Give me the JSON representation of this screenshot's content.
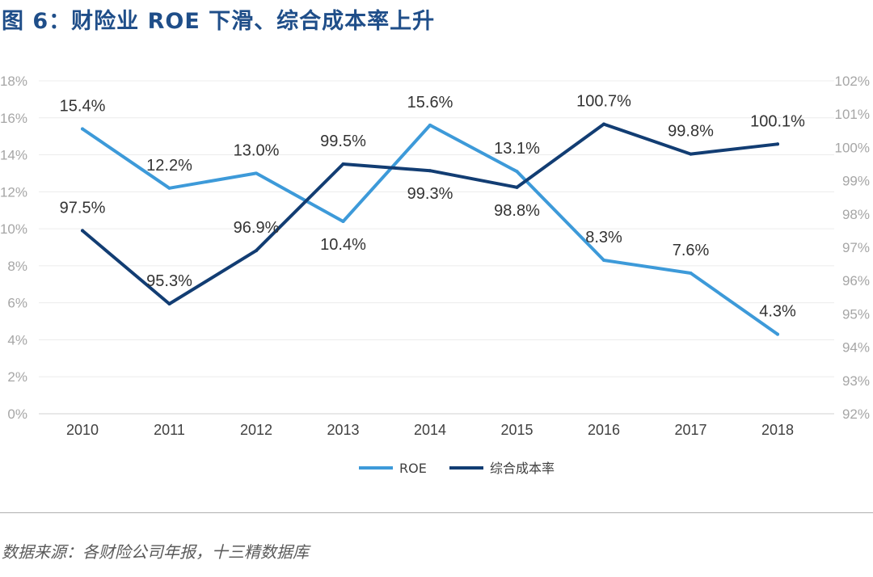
{
  "figure": {
    "title": "图 6：财险业 ROE 下滑、综合成本率上升",
    "source": "数据来源：各财险公司年报，十三精数据库"
  },
  "chart_data": {
    "type": "line",
    "title": "图 6：财险业 ROE 下滑、综合成本率上升",
    "categories": [
      "2010",
      "2011",
      "2012",
      "2013",
      "2014",
      "2015",
      "2016",
      "2017",
      "2018"
    ],
    "series": [
      {
        "name": "ROE",
        "axis": "left",
        "color": "#3d9ad9",
        "values": [
          15.4,
          12.2,
          13.0,
          10.4,
          15.6,
          13.1,
          8.3,
          7.6,
          4.3
        ],
        "labels": [
          "15.4%",
          "12.2%",
          "13.0%",
          "10.4%",
          "15.6%",
          "13.1%",
          "8.3%",
          "7.6%",
          "4.3%"
        ]
      },
      {
        "name": "综合成本率",
        "axis": "right",
        "color": "#123d73",
        "values": [
          97.5,
          95.3,
          96.9,
          99.5,
          99.3,
          98.8,
          100.7,
          99.8,
          100.1
        ],
        "labels": [
          "97.5%",
          "95.3%",
          "96.9%",
          "99.5%",
          "99.3%",
          "98.8%",
          "100.7%",
          "99.8%",
          "100.1%"
        ]
      }
    ],
    "y_left": {
      "min": 0,
      "max": 18,
      "ticks": [
        0,
        2,
        4,
        6,
        8,
        10,
        12,
        14,
        16,
        18
      ],
      "tick_labels": [
        "0%",
        "2%",
        "4%",
        "6%",
        "8%",
        "10%",
        "12%",
        "14%",
        "16%",
        "18%"
      ]
    },
    "y_right": {
      "min": 92,
      "max": 102,
      "ticks": [
        92,
        93,
        94,
        95,
        96,
        97,
        98,
        99,
        100,
        101,
        102
      ],
      "tick_labels": [
        "92%",
        "93%",
        "94%",
        "95%",
        "96%",
        "97%",
        "98%",
        "99%",
        "100%",
        "101%",
        "102%"
      ]
    },
    "grid": true,
    "legend": "bottom-center",
    "xlabel": "",
    "ylabel": ""
  }
}
